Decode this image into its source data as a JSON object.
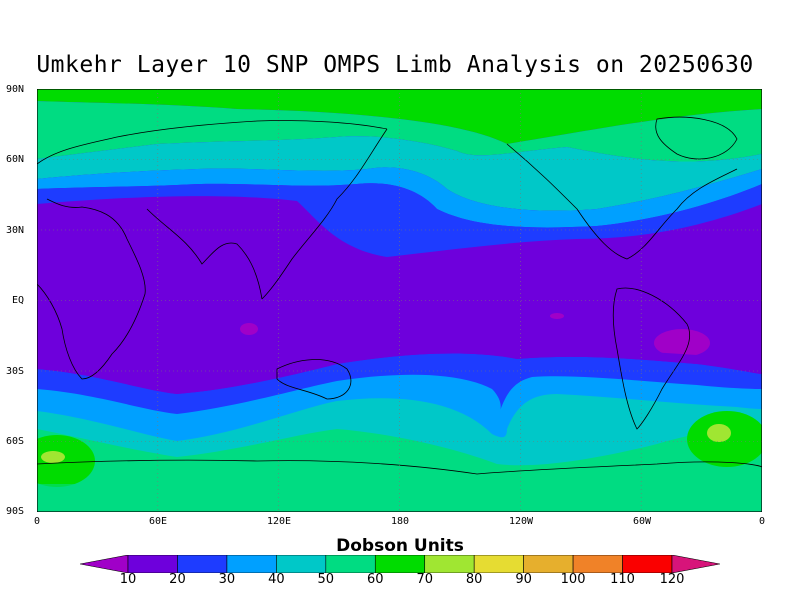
{
  "title": "Umkehr Layer 10 SNP OMPS Limb Analysis on 20250630",
  "lat_labels": [
    "90N",
    "60N",
    "30N",
    "EQ",
    "30S",
    "60S",
    "90S"
  ],
  "lon_labels": [
    "0",
    "60E",
    "120E",
    "180",
    "120W",
    "60W",
    "0"
  ],
  "colorbar": {
    "title": "Dobson Units",
    "ticks": [
      "10",
      "20",
      "30",
      "40",
      "50",
      "60",
      "70",
      "80",
      "90",
      "100",
      "110",
      "120"
    ],
    "colors": [
      "#a000c8",
      "#6e00dc",
      "#1e3cff",
      "#00a0ff",
      "#00c8c8",
      "#00dc82",
      "#00dc00",
      "#a0e632",
      "#e6dc32",
      "#e6af2d",
      "#f08228",
      "#fa0000",
      "#d7147a"
    ]
  },
  "chart_data": {
    "type": "heatmap",
    "title": "Umkehr Layer 10 SNP OMPS Limb Analysis on 20250630",
    "x_ticks": [
      "0",
      "60E",
      "120E",
      "180",
      "120W",
      "60W",
      "0"
    ],
    "y_ticks": [
      "90N",
      "60N",
      "30N",
      "EQ",
      "30S",
      "60S",
      "90S"
    ],
    "x_range": [
      0,
      360
    ],
    "y_range": [
      -90,
      90
    ],
    "units": "Dobson Units",
    "levels": [
      10,
      20,
      30,
      40,
      50,
      60,
      70,
      80,
      90,
      100,
      110,
      120
    ],
    "grid": true,
    "legend": "bottom"
  }
}
